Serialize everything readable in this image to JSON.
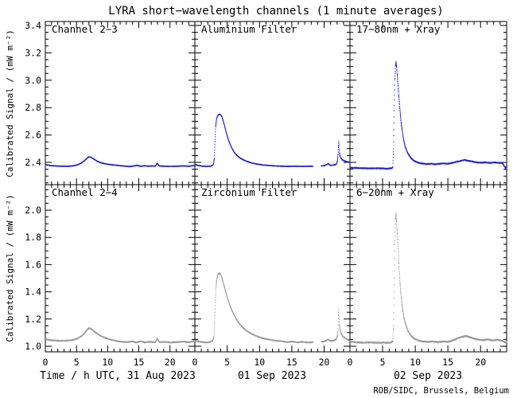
{
  "title": "LYRA short−wavelength channels (1 minute averages)",
  "y_axis_label": "Calibrated Signal / (mW m⁻²)",
  "x_axis_labels": [
    "Time / h UTC, 31 Aug 2023",
    "01 Sep 2023",
    "02 Sep 2023"
  ],
  "footer": "ROB/SIDC, Brussels, Belgium",
  "colors": {
    "top_row": "#2020cc",
    "bottom_row": "#9a9a9a",
    "axis": "#000000",
    "footer_text": "#000080"
  },
  "chart_data": {
    "type": "line",
    "style": "dotted 1-minute samples",
    "x_unit": "hours UTC",
    "x_range": [
      0,
      24
    ],
    "x_ticks": {
      "values": [
        0,
        5,
        10,
        15,
        20
      ],
      "labels": [
        "0",
        "5",
        "10",
        "15",
        "20"
      ],
      "minor_step": 1
    },
    "rows": [
      {
        "name": "short-wavelength-row",
        "y_range": [
          2.24,
          3.43
        ],
        "major_ticks": [
          2.4,
          2.6,
          2.8,
          3.0,
          3.2,
          3.4
        ],
        "tick_labels": [
          "2.4",
          "2.6",
          "2.8",
          "3.0",
          "3.2",
          "3.4"
        ],
        "minor_step": 0.05
      },
      {
        "name": "long-wavelength-row",
        "y_range": [
          0.96,
          2.19
        ],
        "major_ticks": [
          1.0,
          1.2,
          1.4,
          1.6,
          1.8,
          2.0
        ],
        "tick_labels": [
          "1.0",
          "1.2",
          "1.4",
          "1.6",
          "1.8",
          "2.0"
        ],
        "minor_step": 0.05
      }
    ],
    "panels": [
      {
        "label": "Channel 2−3",
        "row": 0,
        "col": 0,
        "color": "#2020cc",
        "noise": 0.0015,
        "gaps": [],
        "keypoints": [
          [
            0,
            2.383
          ],
          [
            0.7,
            2.377
          ],
          [
            1.5,
            2.374
          ],
          [
            2.5,
            2.372
          ],
          [
            3.5,
            2.372
          ],
          [
            4.3,
            2.374
          ],
          [
            5,
            2.381
          ],
          [
            5.6,
            2.392
          ],
          [
            6.1,
            2.408
          ],
          [
            6.5,
            2.425
          ],
          [
            6.9,
            2.44
          ],
          [
            7.3,
            2.437
          ],
          [
            7.7,
            2.425
          ],
          [
            8.2,
            2.41
          ],
          [
            8.8,
            2.398
          ],
          [
            9.5,
            2.39
          ],
          [
            10.5,
            2.383
          ],
          [
            11.5,
            2.378
          ],
          [
            12.5,
            2.374
          ],
          [
            13.4,
            2.369
          ],
          [
            14,
            2.373
          ],
          [
            14.7,
            2.378
          ],
          [
            15.3,
            2.371
          ],
          [
            15.8,
            2.376
          ],
          [
            16.4,
            2.372
          ],
          [
            17,
            2.374
          ],
          [
            17.6,
            2.373
          ],
          [
            17.9,
            2.394
          ],
          [
            18.2,
            2.374
          ],
          [
            19,
            2.372
          ],
          [
            20,
            2.371
          ],
          [
            21,
            2.372
          ],
          [
            22,
            2.374
          ],
          [
            23,
            2.372
          ],
          [
            24,
            2.379
          ]
        ]
      },
      {
        "label": "Aluminium Filter",
        "row": 0,
        "col": 1,
        "color": "#2020cc",
        "noise": 0.0015,
        "gaps": [
          [
            18.2,
            19.5
          ]
        ],
        "keypoints": [
          [
            0,
            2.383
          ],
          [
            0.5,
            2.377
          ],
          [
            1.2,
            2.372
          ],
          [
            2,
            2.371
          ],
          [
            2.5,
            2.374
          ],
          [
            2.8,
            2.385
          ],
          [
            2.95,
            2.43
          ],
          [
            3.05,
            2.55
          ],
          [
            3.15,
            2.66
          ],
          [
            3.3,
            2.72
          ],
          [
            3.5,
            2.745
          ],
          [
            3.7,
            2.752
          ],
          [
            3.9,
            2.748
          ],
          [
            4.1,
            2.735
          ],
          [
            4.35,
            2.7
          ],
          [
            4.6,
            2.655
          ],
          [
            4.9,
            2.6
          ],
          [
            5.2,
            2.555
          ],
          [
            5.6,
            2.51
          ],
          [
            6,
            2.475
          ],
          [
            6.5,
            2.448
          ],
          [
            7,
            2.43
          ],
          [
            7.5,
            2.417
          ],
          [
            8,
            2.407
          ],
          [
            8.7,
            2.396
          ],
          [
            9.5,
            2.388
          ],
          [
            10.5,
            2.381
          ],
          [
            11.5,
            2.377
          ],
          [
            12.5,
            2.374
          ],
          [
            13.5,
            2.372
          ],
          [
            14.5,
            2.371
          ],
          [
            15.5,
            2.372
          ],
          [
            16.5,
            2.371
          ],
          [
            17.5,
            2.372
          ],
          [
            18.2,
            2.371
          ],
          [
            19.5,
            2.374
          ],
          [
            20,
            2.377
          ],
          [
            20.6,
            2.39
          ],
          [
            20.9,
            2.378
          ],
          [
            21.3,
            2.38
          ],
          [
            21.8,
            2.385
          ],
          [
            22,
            2.41
          ],
          [
            22.1,
            2.46
          ],
          [
            22.2,
            2.555
          ],
          [
            22.3,
            2.47
          ],
          [
            22.45,
            2.44
          ],
          [
            22.7,
            2.42
          ],
          [
            23,
            2.412
          ],
          [
            23.5,
            2.405
          ],
          [
            24,
            2.4
          ]
        ]
      },
      {
        "label": "17−80nm + Xray",
        "row": 0,
        "col": 2,
        "color": "#2020cc",
        "noise": 0.003,
        "gaps": [],
        "keypoints": [
          [
            0,
            2.362
          ],
          [
            1,
            2.359
          ],
          [
            2,
            2.357
          ],
          [
            3,
            2.356
          ],
          [
            4,
            2.357
          ],
          [
            5,
            2.356
          ],
          [
            5.6,
            2.353
          ],
          [
            6,
            2.356
          ],
          [
            6.4,
            2.358
          ],
          [
            6.5,
            2.37
          ],
          [
            6.6,
            2.5
          ],
          [
            6.7,
            2.78
          ],
          [
            6.8,
            3.0
          ],
          [
            6.9,
            3.1
          ],
          [
            7,
            3.135
          ],
          [
            7.1,
            3.09
          ],
          [
            7.25,
            3.0
          ],
          [
            7.4,
            2.9
          ],
          [
            7.6,
            2.78
          ],
          [
            7.8,
            2.68
          ],
          [
            8.1,
            2.58
          ],
          [
            8.4,
            2.515
          ],
          [
            8.8,
            2.465
          ],
          [
            9.3,
            2.43
          ],
          [
            9.8,
            2.41
          ],
          [
            10.4,
            2.398
          ],
          [
            11,
            2.392
          ],
          [
            11.7,
            2.388
          ],
          [
            12.4,
            2.39
          ],
          [
            13,
            2.386
          ],
          [
            13.7,
            2.39
          ],
          [
            14.4,
            2.392
          ],
          [
            15,
            2.39
          ],
          [
            15.7,
            2.398
          ],
          [
            16.3,
            2.405
          ],
          [
            17,
            2.412
          ],
          [
            17.5,
            2.418
          ],
          [
            18,
            2.412
          ],
          [
            18.6,
            2.408
          ],
          [
            19.2,
            2.4
          ],
          [
            20,
            2.398
          ],
          [
            20.7,
            2.4
          ],
          [
            21.4,
            2.396
          ],
          [
            22,
            2.4
          ],
          [
            22.7,
            2.397
          ],
          [
            23.3,
            2.394
          ],
          [
            23.75,
            2.36
          ],
          [
            24,
            2.375
          ]
        ]
      },
      {
        "label": "Channel 2−4",
        "row": 1,
        "col": 0,
        "color": "#9a9a9a",
        "noise": 0.003,
        "gaps": [],
        "keypoints": [
          [
            0,
            1.052
          ],
          [
            0.6,
            1.046
          ],
          [
            1.3,
            1.043
          ],
          [
            2.2,
            1.04
          ],
          [
            3.2,
            1.041
          ],
          [
            4.2,
            1.044
          ],
          [
            5,
            1.055
          ],
          [
            5.6,
            1.07
          ],
          [
            6.2,
            1.095
          ],
          [
            6.6,
            1.12
          ],
          [
            6.95,
            1.133
          ],
          [
            7.3,
            1.128
          ],
          [
            7.7,
            1.112
          ],
          [
            8.2,
            1.094
          ],
          [
            8.8,
            1.077
          ],
          [
            9.5,
            1.062
          ],
          [
            10.3,
            1.05
          ],
          [
            11.2,
            1.04
          ],
          [
            12.2,
            1.033
          ],
          [
            13.2,
            1.03
          ],
          [
            13.9,
            1.036
          ],
          [
            14.5,
            1.028
          ],
          [
            15.2,
            1.037
          ],
          [
            15.9,
            1.028
          ],
          [
            16.6,
            1.032
          ],
          [
            17.6,
            1.03
          ],
          [
            17.9,
            1.056
          ],
          [
            18.2,
            1.03
          ],
          [
            19.2,
            1.032
          ],
          [
            20,
            1.028
          ],
          [
            21,
            1.03
          ],
          [
            22,
            1.034
          ],
          [
            23,
            1.03
          ],
          [
            24,
            1.04
          ]
        ]
      },
      {
        "label": "Zirconium Filter",
        "row": 1,
        "col": 1,
        "color": "#9a9a9a",
        "noise": 0.003,
        "gaps": [
          [
            18.2,
            19.5
          ]
        ],
        "keypoints": [
          [
            0,
            1.04
          ],
          [
            0.7,
            1.033
          ],
          [
            1.5,
            1.028
          ],
          [
            2.2,
            1.03
          ],
          [
            2.7,
            1.04
          ],
          [
            2.9,
            1.07
          ],
          [
            3,
            1.18
          ],
          [
            3.1,
            1.32
          ],
          [
            3.2,
            1.43
          ],
          [
            3.35,
            1.5
          ],
          [
            3.55,
            1.53
          ],
          [
            3.75,
            1.538
          ],
          [
            3.95,
            1.525
          ],
          [
            4.15,
            1.5
          ],
          [
            4.4,
            1.455
          ],
          [
            4.7,
            1.4
          ],
          [
            5,
            1.35
          ],
          [
            5.4,
            1.295
          ],
          [
            5.8,
            1.25
          ],
          [
            6.3,
            1.205
          ],
          [
            6.8,
            1.168
          ],
          [
            7.3,
            1.14
          ],
          [
            7.9,
            1.115
          ],
          [
            8.5,
            1.096
          ],
          [
            9.2,
            1.08
          ],
          [
            10,
            1.065
          ],
          [
            10.8,
            1.055
          ],
          [
            11.7,
            1.047
          ],
          [
            12.6,
            1.04
          ],
          [
            13.5,
            1.036
          ],
          [
            14.3,
            1.03
          ],
          [
            15,
            1.035
          ],
          [
            15.7,
            1.028
          ],
          [
            16.5,
            1.032
          ],
          [
            17.4,
            1.028
          ],
          [
            18.2,
            1.03
          ],
          [
            19.5,
            1.032
          ],
          [
            20,
            1.035
          ],
          [
            20.6,
            1.05
          ],
          [
            20.9,
            1.038
          ],
          [
            21.3,
            1.04
          ],
          [
            21.8,
            1.05
          ],
          [
            22,
            1.08
          ],
          [
            22.1,
            1.13
          ],
          [
            22.2,
            1.27
          ],
          [
            22.3,
            1.16
          ],
          [
            22.5,
            1.1
          ],
          [
            22.8,
            1.075
          ],
          [
            23.2,
            1.06
          ],
          [
            23.6,
            1.048
          ],
          [
            24,
            1.04
          ]
        ]
      },
      {
        "label": "6−20nm + Xray",
        "row": 1,
        "col": 2,
        "color": "#9a9a9a",
        "noise": 0.004,
        "gaps": [],
        "keypoints": [
          [
            0,
            1.036
          ],
          [
            0.5,
            1.03
          ],
          [
            1.2,
            1.028
          ],
          [
            2,
            1.026
          ],
          [
            3,
            1.028
          ],
          [
            4,
            1.026
          ],
          [
            5,
            1.028
          ],
          [
            5.8,
            1.025
          ],
          [
            6.3,
            1.028
          ],
          [
            6.5,
            1.04
          ],
          [
            6.6,
            1.15
          ],
          [
            6.7,
            1.45
          ],
          [
            6.8,
            1.75
          ],
          [
            6.9,
            1.93
          ],
          [
            7,
            1.977
          ],
          [
            7.1,
            1.9
          ],
          [
            7.25,
            1.78
          ],
          [
            7.4,
            1.63
          ],
          [
            7.6,
            1.47
          ],
          [
            7.8,
            1.35
          ],
          [
            8.1,
            1.24
          ],
          [
            8.4,
            1.17
          ],
          [
            8.8,
            1.115
          ],
          [
            9.3,
            1.077
          ],
          [
            9.8,
            1.055
          ],
          [
            10.4,
            1.042
          ],
          [
            11,
            1.036
          ],
          [
            11.8,
            1.032
          ],
          [
            12.6,
            1.035
          ],
          [
            13.4,
            1.03
          ],
          [
            14.2,
            1.035
          ],
          [
            15,
            1.033
          ],
          [
            15.8,
            1.045
          ],
          [
            16.5,
            1.06
          ],
          [
            17.2,
            1.07
          ],
          [
            17.8,
            1.075
          ],
          [
            18.4,
            1.065
          ],
          [
            19,
            1.055
          ],
          [
            19.7,
            1.048
          ],
          [
            20.4,
            1.045
          ],
          [
            21.1,
            1.05
          ],
          [
            21.8,
            1.042
          ],
          [
            22.5,
            1.048
          ],
          [
            23.2,
            1.04
          ],
          [
            23.7,
            1.03
          ],
          [
            24,
            1.036
          ]
        ]
      }
    ]
  }
}
